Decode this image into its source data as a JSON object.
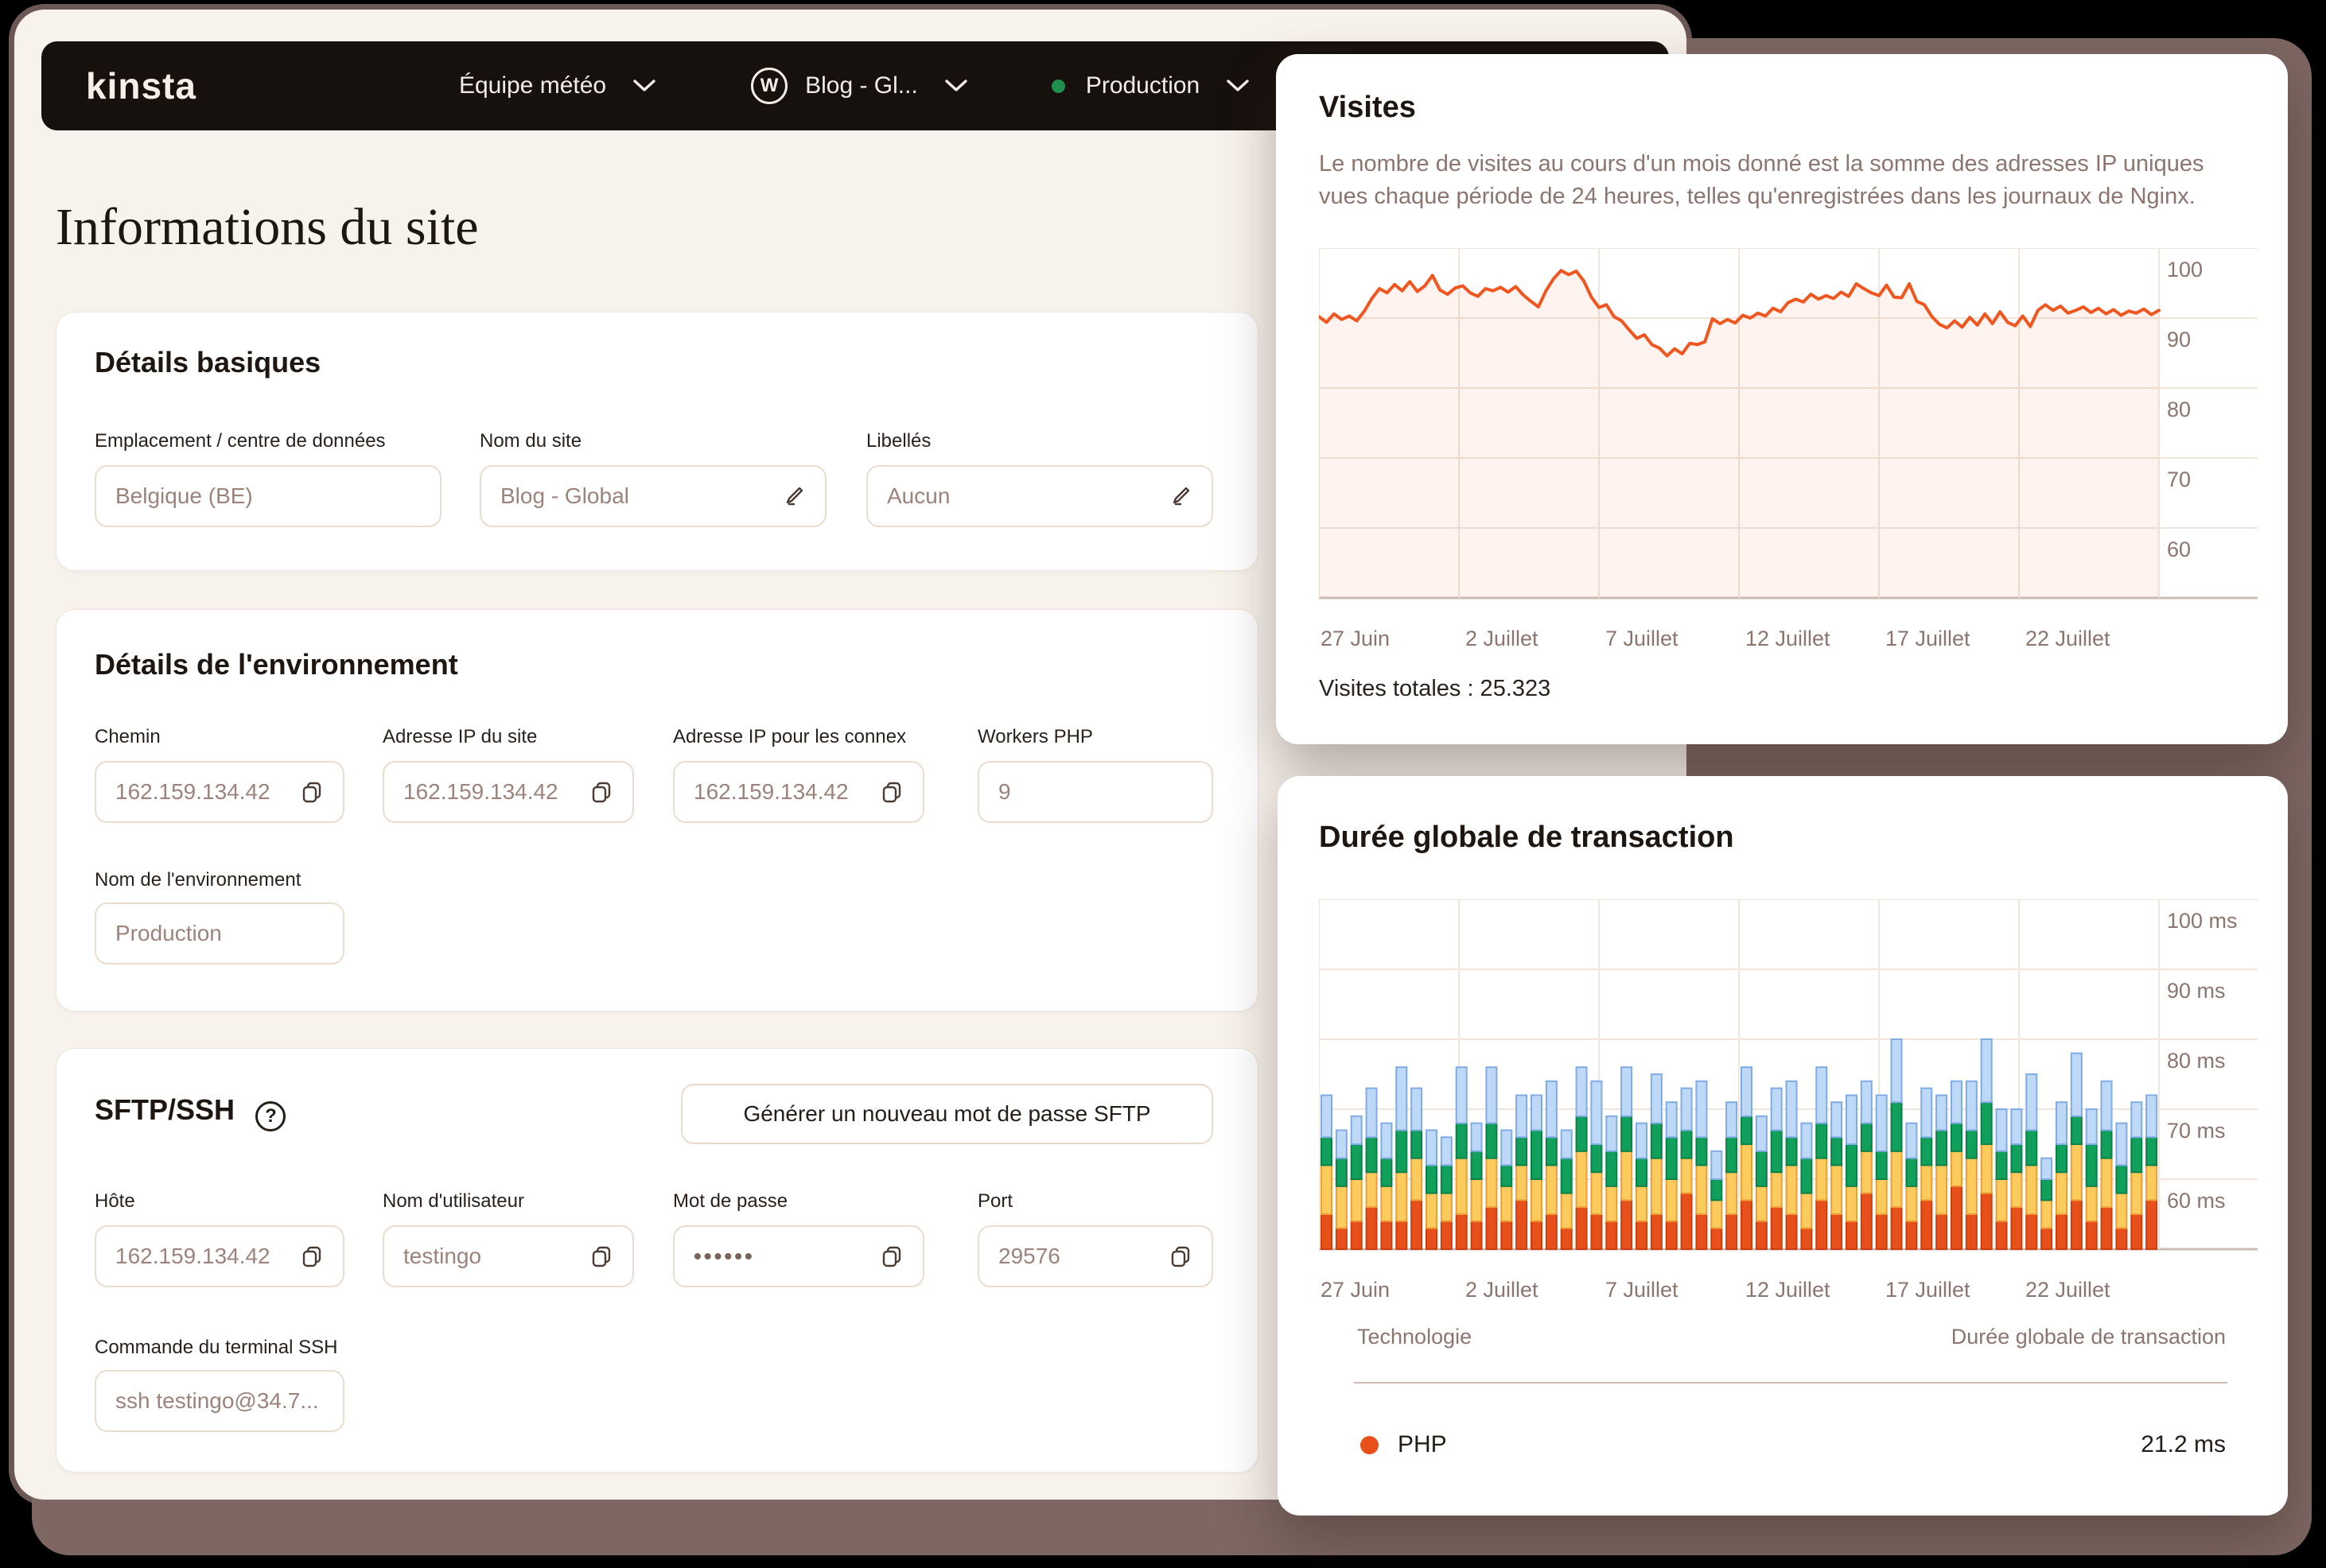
{
  "nav": {
    "logo": "kinsta",
    "team_label": "Équipe météo",
    "site_label": "Blog - Gl...",
    "site_icon": "wordpress-icon",
    "env_label": "Production",
    "env_status_color": "#1E8F4D"
  },
  "page": {
    "title": "Informations du site"
  },
  "basic": {
    "title": "Détails basiques",
    "fields": [
      {
        "label": "Emplacement / centre de données",
        "value": "Belgique (BE)"
      },
      {
        "label": "Nom du site",
        "value": "Blog - Global"
      },
      {
        "label": "Libellés",
        "value": "Aucun"
      }
    ]
  },
  "env": {
    "title": "Détails de l'environnement",
    "fields": [
      {
        "label": "Chemin",
        "value": "162.159.134.42"
      },
      {
        "label": "Adresse IP du site",
        "value": "162.159.134.42"
      },
      {
        "label": "Adresse IP pour les connex",
        "value": "162.159.134.42"
      },
      {
        "label": "Workers PHP",
        "value": "9"
      }
    ],
    "env_name_label": "Nom de l'environnement",
    "env_name_value": "Production"
  },
  "sftp": {
    "title": "SFTP/SSH",
    "button_label": "Générer un nouveau mot de passe SFTP",
    "fields": [
      {
        "label": "Hôte",
        "value": "162.159.134.42"
      },
      {
        "label": "Nom d'utilisateur",
        "value": "testingo"
      },
      {
        "label": "Mot de passe",
        "value": "••••••"
      },
      {
        "label": "Port",
        "value": "29576"
      }
    ],
    "ssh_label": "Commande du terminal SSH",
    "ssh_value": "ssh testingo@34.7..."
  },
  "visits": {
    "title": "Visites",
    "description": "Le nombre de visites au cours d'un mois donné est la somme des adresses IP uniques vues chaque période de 24 heures, telles qu'enregistrées dans les journaux de Nginx.",
    "total_label": "Visites totales : 25.323"
  },
  "transaction": {
    "title": "Durée globale de transaction",
    "table": {
      "col1": "Technologie",
      "col2": "Durée globale de transaction",
      "rows": [
        {
          "tech": "PHP",
          "value": "21.2 ms",
          "color": "#E8501B"
        }
      ]
    }
  },
  "chart_data": [
    {
      "type": "line",
      "title": "Visites",
      "x_ticks": [
        "27 Juin",
        "2 Juillet",
        "7 Juillet",
        "12 Juillet",
        "17 Juillet",
        "22 Juillet"
      ],
      "y_ticks": [
        100,
        90,
        80,
        70,
        60
      ],
      "ylim": [
        50,
        100
      ],
      "grid": true,
      "line_color": "#F0561F",
      "fill_color": "rgba(242,88,34,0.07)",
      "values": [
        90.2,
        89.4,
        90.6,
        89.8,
        90.3,
        89.6,
        91.0,
        92.8,
        94.2,
        93.6,
        94.8,
        93.9,
        95.2,
        93.8,
        94.6,
        96.1,
        94.0,
        93.4,
        94.3,
        94.6,
        93.6,
        93.1,
        94.2,
        93.9,
        94.4,
        93.7,
        94.5,
        93.3,
        92.4,
        91.6,
        93.9,
        95.6,
        96.8,
        96.2,
        96.7,
        95.3,
        93.0,
        91.5,
        91.9,
        90.2,
        89.6,
        88.3,
        87.1,
        87.6,
        86.2,
        85.7,
        84.6,
        85.6,
        84.9,
        86.4,
        86.2,
        86.6,
        89.9,
        89.2,
        89.8,
        89.3,
        90.4,
        90.0,
        90.7,
        90.3,
        91.4,
        90.9,
        92.2,
        92.7,
        92.3,
        93.4,
        92.7,
        93.2,
        92.8,
        93.7,
        93.1,
        94.9,
        94.2,
        93.6,
        93.2,
        94.7,
        93.0,
        92.9,
        94.9,
        92.4,
        91.9,
        90.2,
        89.1,
        88.6,
        89.6,
        88.7,
        90.1,
        89.0,
        90.6,
        89.2,
        90.9,
        89.4,
        88.9,
        90.3,
        88.8,
        91.1,
        91.9,
        91.1,
        91.7,
        90.7,
        91.1,
        91.6,
        90.8,
        91.4,
        90.6,
        91.2,
        90.4,
        91.0,
        90.7,
        91.3,
        90.5,
        91.1
      ]
    },
    {
      "type": "stacked_bar",
      "title": "Durée globale de transaction",
      "x_ticks": [
        "27 Juin",
        "2 Juillet",
        "7 Juillet",
        "12 Juillet",
        "17 Juillet",
        "22 Juillet"
      ],
      "y_ticks": [
        "100 ms",
        "90 ms",
        "80 ms",
        "70 ms",
        "60 ms"
      ],
      "ylim": [
        50,
        100
      ],
      "baseline": 50,
      "grid": true,
      "legend": [
        {
          "name": "PHP",
          "average": "21.2 ms",
          "color": "#E8501B"
        }
      ],
      "segment_colors": [
        {
          "name": "php",
          "fill": "#E8501B",
          "stroke": "#CC3F0C"
        },
        {
          "name": "yellow",
          "fill": "#FBCC5D",
          "stroke": "#ED9F35"
        },
        {
          "name": "green",
          "fill": "#11A05B",
          "stroke": "#0B8148"
        },
        {
          "name": "blue",
          "fill": "#BED9F7",
          "stroke": "#7FACE4"
        }
      ],
      "bars": [
        [
          5,
          7,
          4,
          6
        ],
        [
          3,
          6,
          4,
          4
        ],
        [
          4,
          6,
          5,
          4
        ],
        [
          6,
          5,
          5,
          7
        ],
        [
          4,
          5,
          4,
          5
        ],
        [
          4,
          7,
          6,
          9
        ],
        [
          7,
          6,
          4,
          6
        ],
        [
          3,
          5,
          4,
          5
        ],
        [
          4,
          4,
          4,
          4
        ],
        [
          5,
          8,
          5,
          8
        ],
        [
          4,
          6,
          4,
          4
        ],
        [
          6,
          7,
          5,
          8
        ],
        [
          4,
          5,
          3,
          5
        ],
        [
          7,
          5,
          4,
          6
        ],
        [
          4,
          6,
          7,
          5
        ],
        [
          5,
          7,
          4,
          8
        ],
        [
          3,
          5,
          5,
          4
        ],
        [
          6,
          8,
          5,
          7
        ],
        [
          5,
          6,
          4,
          9
        ],
        [
          4,
          5,
          5,
          5
        ],
        [
          7,
          7,
          5,
          7
        ],
        [
          4,
          5,
          4,
          5
        ],
        [
          5,
          8,
          5,
          7
        ],
        [
          4,
          6,
          6,
          5
        ],
        [
          8,
          5,
          4,
          6
        ],
        [
          5,
          7,
          4,
          8
        ],
        [
          3,
          4,
          3,
          4
        ],
        [
          5,
          6,
          5,
          5
        ],
        [
          7,
          8,
          4,
          7
        ],
        [
          4,
          5,
          5,
          5
        ],
        [
          6,
          5,
          6,
          6
        ],
        [
          5,
          7,
          4,
          8
        ],
        [
          3,
          5,
          5,
          5
        ],
        [
          7,
          6,
          5,
          8
        ],
        [
          5,
          7,
          4,
          5
        ],
        [
          4,
          5,
          6,
          7
        ],
        [
          8,
          6,
          4,
          6
        ],
        [
          5,
          5,
          4,
          8
        ],
        [
          6,
          8,
          7,
          9
        ],
        [
          4,
          5,
          4,
          5
        ],
        [
          7,
          5,
          4,
          7
        ],
        [
          5,
          7,
          5,
          5
        ],
        [
          9,
          5,
          4,
          6
        ],
        [
          5,
          8,
          4,
          7
        ],
        [
          8,
          7,
          6,
          9
        ],
        [
          4,
          6,
          4,
          6
        ],
        [
          6,
          5,
          4,
          5
        ],
        [
          5,
          7,
          5,
          8
        ],
        [
          3,
          4,
          3,
          3
        ],
        [
          5,
          6,
          4,
          6
        ],
        [
          7,
          8,
          4,
          9
        ],
        [
          4,
          5,
          6,
          5
        ],
        [
          6,
          7,
          4,
          7
        ],
        [
          3,
          5,
          4,
          6
        ],
        [
          5,
          6,
          5,
          5
        ],
        [
          7,
          5,
          4,
          6
        ]
      ]
    }
  ]
}
